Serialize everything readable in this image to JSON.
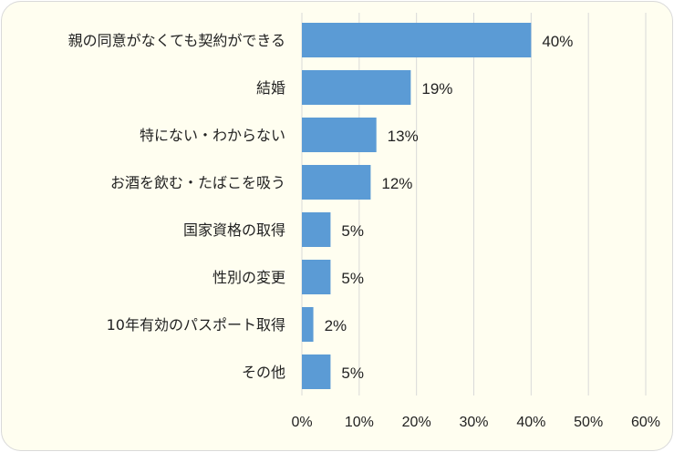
{
  "chart_data": {
    "type": "bar",
    "orientation": "horizontal",
    "categories": [
      "親の同意がなくても契約ができる",
      "結婚",
      "特にない・わからない",
      "お酒を飲む・たばこを吸う",
      "国家資格の取得",
      "性別の変更",
      "10年有効のパスポート取得",
      "その他"
    ],
    "values": [
      40,
      19,
      13,
      12,
      5,
      5,
      2,
      5
    ],
    "value_labels": [
      "40%",
      "19%",
      "13%",
      "12%",
      "5%",
      "5%",
      "2%",
      "5%"
    ],
    "xlim": [
      0,
      60
    ],
    "xticks": [
      0,
      10,
      20,
      30,
      40,
      50,
      60
    ],
    "xtick_labels": [
      "0%",
      "10%",
      "20%",
      "30%",
      "40%",
      "50%",
      "60%"
    ],
    "grid": "vertical",
    "legend": "none",
    "colors": {
      "bar": "#5b9bd5",
      "background": "#fffef0",
      "grid": "#d9d9d9",
      "text": "#222222"
    }
  }
}
